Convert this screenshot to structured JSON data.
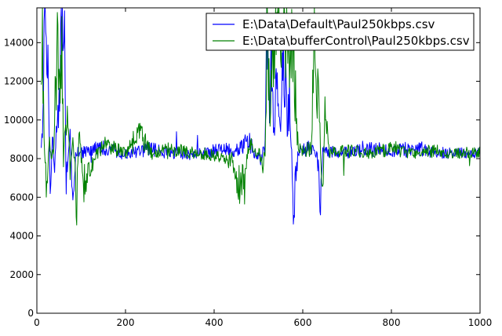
{
  "chart_data": {
    "type": "line",
    "title": "",
    "xlabel": "",
    "ylabel": "",
    "xlim": [
      0,
      1000
    ],
    "ylim": [
      0,
      15800
    ],
    "xticks": [
      0,
      200,
      400,
      600,
      800,
      1000
    ],
    "yticks": [
      0,
      2000,
      4000,
      6000,
      8000,
      10000,
      12000,
      14000
    ],
    "grid": false,
    "legend_position": "top-right",
    "series": [
      {
        "name": "E:\\Data\\Default\\Paul250kbps.csv",
        "color": "#0000ff",
        "baseline": 8300,
        "noise": 300,
        "x": [
          0,
          10,
          18,
          25,
          30,
          35,
          40,
          45,
          50,
          55,
          60,
          63,
          66,
          70,
          75,
          80,
          90,
          100,
          120,
          150,
          200,
          250,
          300,
          350,
          400,
          450,
          480,
          500,
          515,
          520,
          525,
          530,
          535,
          540,
          545,
          550,
          555,
          560,
          565,
          570,
          575,
          580,
          583,
          586,
          590,
          600,
          610,
          620,
          630,
          640,
          645,
          650,
          660,
          700,
          750,
          800,
          850,
          900,
          950,
          1000
        ],
        "y": [
          8300,
          8300,
          14500,
          12000,
          6300,
          9000,
          7800,
          9500,
          10400,
          13500,
          13400,
          14000,
          6500,
          8000,
          9000,
          6200,
          8500,
          8300,
          8400,
          8600,
          8200,
          8500,
          8300,
          8200,
          8400,
          8500,
          8900,
          7800,
          8600,
          15800,
          10000,
          14200,
          9500,
          13000,
          12000,
          10500,
          13500,
          12500,
          10000,
          11000,
          8300,
          4800,
          6800,
          7400,
          8500,
          8400,
          8500,
          8600,
          8300,
          6000,
          8600,
          8300,
          8400,
          8300,
          8500,
          8400,
          8600,
          8300,
          8300,
          8300
        ]
      },
      {
        "name": "E:\\Data\\bufferControl\\Paul250kbps.csv",
        "color": "#008000",
        "baseline": 8300,
        "noise": 300,
        "x": [
          0,
          8,
          12,
          16,
          22,
          28,
          33,
          38,
          43,
          48,
          52,
          56,
          60,
          64,
          70,
          75,
          80,
          85,
          90,
          95,
          100,
          105,
          120,
          150,
          200,
          230,
          260,
          300,
          350,
          400,
          440,
          460,
          480,
          500,
          510,
          515,
          520,
          525,
          530,
          535,
          540,
          545,
          550,
          555,
          560,
          565,
          570,
          575,
          580,
          590,
          600,
          615,
          620,
          625,
          630,
          635,
          640,
          645,
          650,
          660,
          700,
          750,
          800,
          850,
          900,
          950,
          1000
        ],
        "y": [
          8300,
          11000,
          15800,
          9000,
          6300,
          9500,
          7800,
          8500,
          11000,
          14600,
          10200,
          14500,
          8000,
          9500,
          10600,
          7500,
          9000,
          8000,
          5600,
          9800,
          8000,
          6600,
          7600,
          8700,
          8300,
          9400,
          8200,
          8500,
          8300,
          8200,
          7800,
          6500,
          8700,
          8300,
          7700,
          8500,
          15800,
          10500,
          11500,
          15800,
          13000,
          14000,
          15800,
          13500,
          15800,
          15800,
          14000,
          13500,
          12800,
          8700,
          8400,
          8500,
          8700,
          14500,
          11500,
          12200,
          8600,
          6000,
          10400,
          8300,
          8400,
          8300,
          8500,
          8300,
          8400,
          8300,
          8300
        ]
      }
    ]
  }
}
